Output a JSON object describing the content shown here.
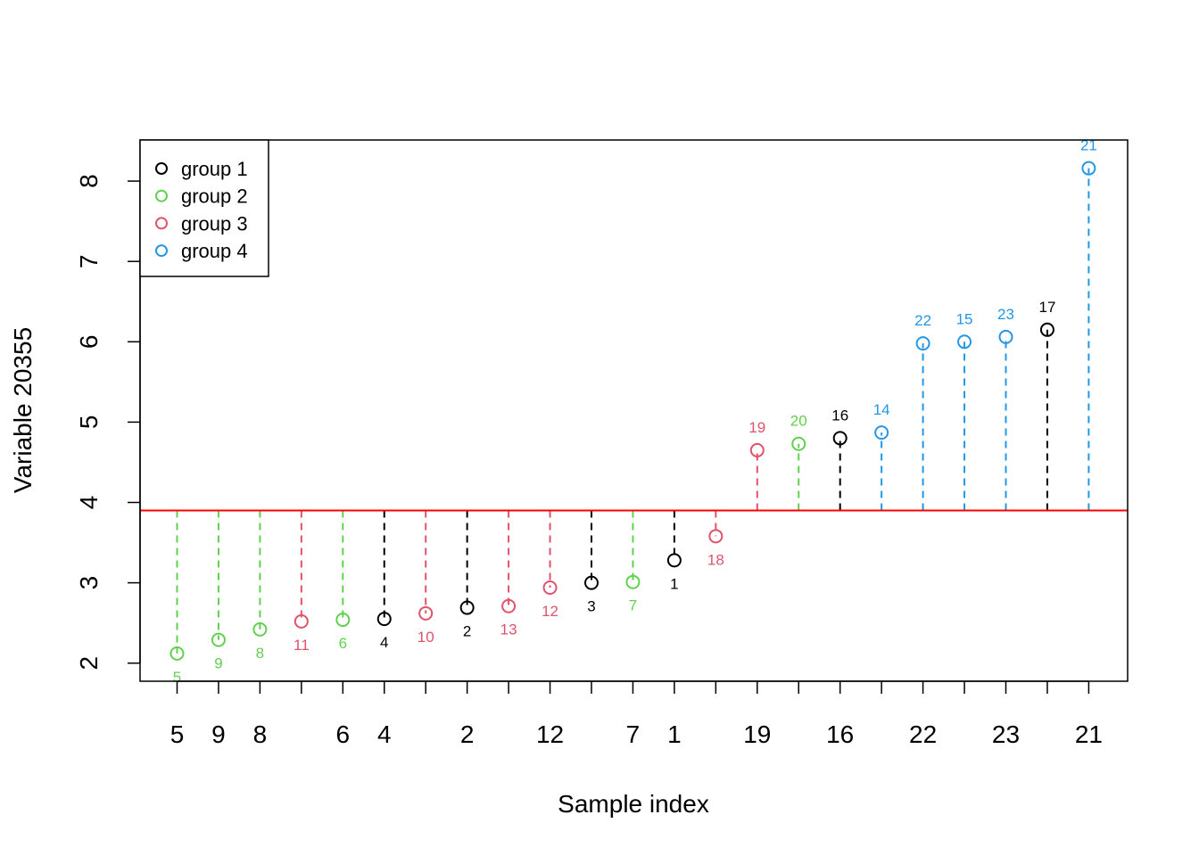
{
  "chart_data": {
    "type": "scatter",
    "title": "",
    "xlabel": "Sample index",
    "ylabel": "Variable 20355",
    "ylim": [
      1.8,
      8.5
    ],
    "yticks": [
      "2",
      "3",
      "4",
      "5",
      "6",
      "7",
      "8"
    ],
    "xtick_labels": [
      "5",
      "9",
      "8",
      "",
      "6",
      "4",
      "",
      "2",
      "",
      "12",
      "",
      "7",
      "1",
      "",
      "19",
      "",
      "16",
      "",
      "22",
      "",
      "23",
      "",
      "21"
    ],
    "reference_line": 3.9,
    "grid": false,
    "legend_position": "top-left",
    "groups": [
      {
        "name": "group 1",
        "color": "#000000"
      },
      {
        "name": "group 2",
        "color": "#61D04F"
      },
      {
        "name": "group 3",
        "color": "#DF536B"
      },
      {
        "name": "group 4",
        "color": "#2297E6"
      }
    ],
    "points": [
      {
        "label": "5",
        "value": 2.12,
        "group": 2
      },
      {
        "label": "9",
        "value": 2.29,
        "group": 2
      },
      {
        "label": "8",
        "value": 2.42,
        "group": 2
      },
      {
        "label": "11",
        "value": 2.52,
        "group": 3
      },
      {
        "label": "6",
        "value": 2.54,
        "group": 2
      },
      {
        "label": "4",
        "value": 2.55,
        "group": 1
      },
      {
        "label": "10",
        "value": 2.62,
        "group": 3
      },
      {
        "label": "2",
        "value": 2.69,
        "group": 1
      },
      {
        "label": "13",
        "value": 2.71,
        "group": 3
      },
      {
        "label": "12",
        "value": 2.94,
        "group": 3
      },
      {
        "label": "3",
        "value": 3.0,
        "group": 1
      },
      {
        "label": "7",
        "value": 3.01,
        "group": 2
      },
      {
        "label": "1",
        "value": 3.28,
        "group": 1
      },
      {
        "label": "18",
        "value": 3.58,
        "group": 3
      },
      {
        "label": "19",
        "value": 4.65,
        "group": 3
      },
      {
        "label": "20",
        "value": 4.73,
        "group": 2
      },
      {
        "label": "16",
        "value": 4.8,
        "group": 1
      },
      {
        "label": "14",
        "value": 4.87,
        "group": 4
      },
      {
        "label": "22",
        "value": 5.98,
        "group": 4
      },
      {
        "label": "15",
        "value": 6.0,
        "group": 4
      },
      {
        "label": "23",
        "value": 6.06,
        "group": 4
      },
      {
        "label": "17",
        "value": 6.15,
        "group": 1
      },
      {
        "label": "21",
        "value": 8.16,
        "group": 4
      }
    ]
  }
}
